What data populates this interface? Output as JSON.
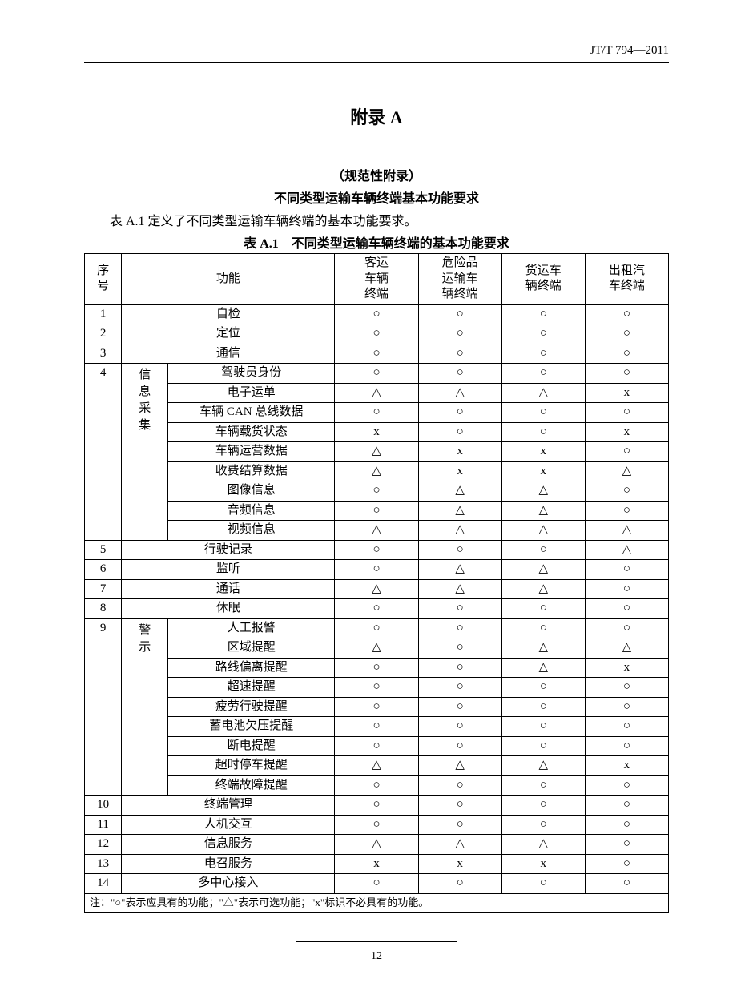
{
  "standard_code": "JT/T 794—2011",
  "title_main": "附录 A",
  "subtitle_1": "（规范性附录）",
  "subtitle_2": "不同类型运输车辆终端基本功能要求",
  "intro_line": "表 A.1 定义了不同类型运输车辆终端的基本功能要求。",
  "table_caption": "表 A.1　不同类型运输车辆终端的基本功能要求",
  "table": {
    "headers": {
      "seq": "序号",
      "function": "功能",
      "col1": "客运车辆终端",
      "col2": "危险品运输车辆终端",
      "col3": "货运车辆终端",
      "col4": "出租汽车终端"
    },
    "symbols": {
      "circle": "○",
      "triangle": "△",
      "x": "x"
    },
    "rows": [
      {
        "seq": "1",
        "func": "自检",
        "v": [
          "○",
          "○",
          "○",
          "○"
        ]
      },
      {
        "seq": "2",
        "func": "定位",
        "v": [
          "○",
          "○",
          "○",
          "○"
        ]
      },
      {
        "seq": "3",
        "func": "通信",
        "v": [
          "○",
          "○",
          "○",
          "○"
        ]
      }
    ],
    "group4": {
      "seq": "4",
      "group_label": "信息采集",
      "items": [
        {
          "func": "驾驶员身份",
          "v": [
            "○",
            "○",
            "○",
            "○"
          ]
        },
        {
          "func": "电子运单",
          "v": [
            "△",
            "△",
            "△",
            "x"
          ]
        },
        {
          "func": "车辆 CAN 总线数据",
          "v": [
            "○",
            "○",
            "○",
            "○"
          ]
        },
        {
          "func": "车辆载货状态",
          "v": [
            "x",
            "○",
            "○",
            "x"
          ]
        },
        {
          "func": "车辆运营数据",
          "v": [
            "△",
            "x",
            "x",
            "○"
          ]
        },
        {
          "func": "收费结算数据",
          "v": [
            "△",
            "x",
            "x",
            "△"
          ]
        },
        {
          "func": "图像信息",
          "v": [
            "○",
            "△",
            "△",
            "○"
          ]
        },
        {
          "func": "音频信息",
          "v": [
            "○",
            "△",
            "△",
            "○"
          ]
        },
        {
          "func": "视频信息",
          "v": [
            "△",
            "△",
            "△",
            "△"
          ]
        }
      ]
    },
    "rows5to8": [
      {
        "seq": "5",
        "func": "行驶记录",
        "v": [
          "○",
          "○",
          "○",
          "△"
        ]
      },
      {
        "seq": "6",
        "func": "监听",
        "v": [
          "○",
          "△",
          "△",
          "○"
        ]
      },
      {
        "seq": "7",
        "func": "通话",
        "v": [
          "△",
          "△",
          "△",
          "○"
        ]
      },
      {
        "seq": "8",
        "func": "休眠",
        "v": [
          "○",
          "○",
          "○",
          "○"
        ]
      }
    ],
    "group9": {
      "seq": "9",
      "group_label": "警示",
      "items": [
        {
          "func": "人工报警",
          "v": [
            "○",
            "○",
            "○",
            "○"
          ]
        },
        {
          "func": "区域提醒",
          "v": [
            "△",
            "○",
            "△",
            "△"
          ]
        },
        {
          "func": "路线偏离提醒",
          "v": [
            "○",
            "○",
            "△",
            "x"
          ]
        },
        {
          "func": "超速提醒",
          "v": [
            "○",
            "○",
            "○",
            "○"
          ]
        },
        {
          "func": "疲劳行驶提醒",
          "v": [
            "○",
            "○",
            "○",
            "○"
          ]
        },
        {
          "func": "蓄电池欠压提醒",
          "v": [
            "○",
            "○",
            "○",
            "○"
          ]
        },
        {
          "func": "断电提醒",
          "v": [
            "○",
            "○",
            "○",
            "○"
          ]
        },
        {
          "func": "超时停车提醒",
          "v": [
            "△",
            "△",
            "△",
            "x"
          ]
        },
        {
          "func": "终端故障提醒",
          "v": [
            "○",
            "○",
            "○",
            "○"
          ]
        }
      ]
    },
    "rows10to14": [
      {
        "seq": "10",
        "func": "终端管理",
        "v": [
          "○",
          "○",
          "○",
          "○"
        ]
      },
      {
        "seq": "11",
        "func": "人机交互",
        "v": [
          "○",
          "○",
          "○",
          "○"
        ]
      },
      {
        "seq": "12",
        "func": "信息服务",
        "v": [
          "△",
          "△",
          "△",
          "○"
        ]
      },
      {
        "seq": "13",
        "func": "电召服务",
        "v": [
          "x",
          "x",
          "x",
          "○"
        ]
      },
      {
        "seq": "14",
        "func": "多中心接入",
        "v": [
          "○",
          "○",
          "○",
          "○"
        ]
      }
    ],
    "footnote": "注：\"○\"表示应具有的功能；\"△\"表示可选功能；\"x\"标识不必具有的功能。"
  },
  "page_number": "12"
}
